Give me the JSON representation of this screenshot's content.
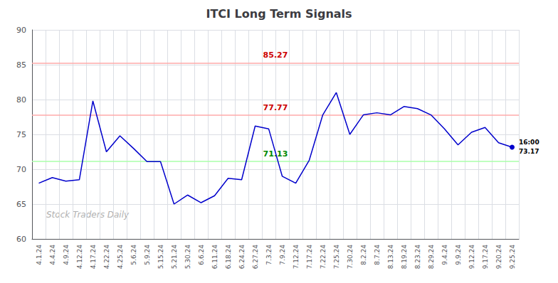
{
  "chart_data": {
    "type": "line",
    "title": "ITCI Long Term Signals",
    "categories": [
      "4.1.24",
      "4.4.24",
      "4.9.24",
      "4.12.24",
      "4.17.24",
      "4.22.24",
      "4.25.24",
      "5.6.24",
      "5.9.24",
      "5.15.24",
      "5.21.24",
      "5.30.24",
      "6.6.24",
      "6.11.24",
      "6.18.24",
      "6.24.24",
      "6.27.24",
      "7.3.24",
      "7.9.24",
      "7.12.24",
      "7.17.24",
      "7.22.24",
      "7.25.24",
      "7.30.24",
      "8.2.24",
      "8.7.24",
      "8.13.24",
      "8.19.24",
      "8.23.24",
      "8.29.24",
      "9.4.24",
      "9.9.24",
      "9.12.24",
      "9.17.24",
      "9.20.24",
      "9.25.24"
    ],
    "values": [
      68.0,
      68.8,
      68.3,
      68.5,
      79.8,
      72.5,
      74.8,
      73.0,
      71.1,
      71.1,
      65.0,
      66.3,
      65.2,
      66.2,
      68.7,
      68.5,
      76.2,
      75.8,
      69.0,
      68.0,
      71.3,
      77.8,
      81.0,
      75.0,
      77.8,
      78.1,
      77.8,
      79.0,
      78.7,
      77.8,
      75.8,
      73.5,
      75.3,
      76.0,
      73.8,
      73.17
    ],
    "color": "#0000cc",
    "hlines": [
      {
        "value": 85.27,
        "label": "85.27",
        "color": "#ffaaaa",
        "label_color": "#cc0000"
      },
      {
        "value": 77.77,
        "label": "77.77",
        "color": "#ffaaaa",
        "label_color": "#cc0000"
      },
      {
        "value": 71.13,
        "label": "71.13",
        "color": "#aaffaa",
        "label_color": "#008800"
      }
    ],
    "last_point_labels": [
      "16:00",
      "73.17"
    ],
    "watermark": "Stock Traders Daily",
    "ylim": [
      60,
      90
    ],
    "yticks": [
      60,
      65,
      70,
      75,
      80,
      85,
      90
    ],
    "grid": true
  }
}
